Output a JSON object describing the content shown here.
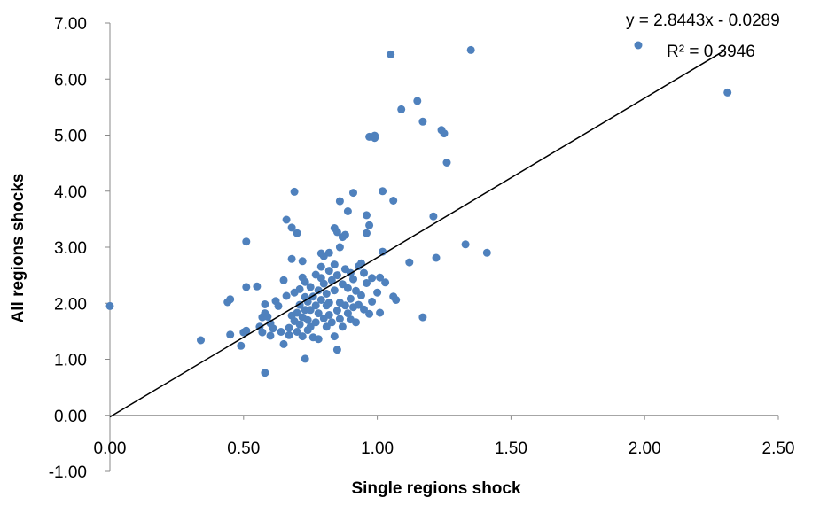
{
  "chart_data": {
    "type": "scatter",
    "xlabel": "Single regions shock",
    "ylabel": "All regions shocks",
    "xlim": [
      0,
      2.5
    ],
    "ylim": [
      -1,
      7
    ],
    "x_ticks": [
      "0.00",
      "0.50",
      "1.00",
      "1.50",
      "2.00",
      "2.50"
    ],
    "y_ticks": [
      "-1.00",
      "0.00",
      "1.00",
      "2.00",
      "3.00",
      "4.00",
      "5.00",
      "6.00",
      "7.00"
    ],
    "grid": false,
    "legend_position": "top-right",
    "point_color": "#4f81bd",
    "trendline": {
      "slope": 2.8443,
      "intercept": -0.0289,
      "x_range": [
        0,
        2.3
      ],
      "color": "#000000",
      "equation_label": "y = 2.8443x - 0.0289",
      "r2_label": "R² = 0.3946"
    },
    "points": [
      [
        0.0,
        1.95
      ],
      [
        0.34,
        1.34
      ],
      [
        0.44,
        2.02
      ],
      [
        0.45,
        2.07
      ],
      [
        0.45,
        1.44
      ],
      [
        0.49,
        1.24
      ],
      [
        0.5,
        1.48
      ],
      [
        0.51,
        1.51
      ],
      [
        0.51,
        3.1
      ],
      [
        0.51,
        2.29
      ],
      [
        0.55,
        2.3
      ],
      [
        0.56,
        1.58
      ],
      [
        0.57,
        1.75
      ],
      [
        0.57,
        1.48
      ],
      [
        0.58,
        0.76
      ],
      [
        0.58,
        1.98
      ],
      [
        0.58,
        1.82
      ],
      [
        0.59,
        1.76
      ],
      [
        0.6,
        1.42
      ],
      [
        0.6,
        1.64
      ],
      [
        0.61,
        1.55
      ],
      [
        0.62,
        2.04
      ],
      [
        0.63,
        1.95
      ],
      [
        0.64,
        1.49
      ],
      [
        0.65,
        2.41
      ],
      [
        0.65,
        1.27
      ],
      [
        0.66,
        2.13
      ],
      [
        0.66,
        3.49
      ],
      [
        0.67,
        1.56
      ],
      [
        0.67,
        1.43
      ],
      [
        0.68,
        3.35
      ],
      [
        0.68,
        1.78
      ],
      [
        0.68,
        2.79
      ],
      [
        0.69,
        1.68
      ],
      [
        0.69,
        2.19
      ],
      [
        0.69,
        3.99
      ],
      [
        0.7,
        3.25
      ],
      [
        0.7,
        1.49
      ],
      [
        0.7,
        1.83
      ],
      [
        0.71,
        2.25
      ],
      [
        0.71,
        1.97
      ],
      [
        0.71,
        1.62
      ],
      [
        0.72,
        2.75
      ],
      [
        0.72,
        2.46
      ],
      [
        0.72,
        1.75
      ],
      [
        0.72,
        1.41
      ],
      [
        0.73,
        2.38
      ],
      [
        0.73,
        1.01
      ],
      [
        0.73,
        1.88
      ],
      [
        0.73,
        2.11
      ],
      [
        0.74,
        1.52
      ],
      [
        0.74,
        2.03
      ],
      [
        0.74,
        1.7
      ],
      [
        0.75,
        2.29
      ],
      [
        0.75,
        1.88
      ],
      [
        0.75,
        1.58
      ],
      [
        0.76,
        2.12
      ],
      [
        0.76,
        1.39
      ],
      [
        0.77,
        2.51
      ],
      [
        0.77,
        1.96
      ],
      [
        0.77,
        1.66
      ],
      [
        0.78,
        2.23
      ],
      [
        0.78,
        1.82
      ],
      [
        0.78,
        1.36
      ],
      [
        0.79,
        2.89
      ],
      [
        0.79,
        2.45
      ],
      [
        0.79,
        2.06
      ],
      [
        0.79,
        2.65
      ],
      [
        0.8,
        1.73
      ],
      [
        0.8,
        2.84
      ],
      [
        0.8,
        2.35
      ],
      [
        0.81,
        1.96
      ],
      [
        0.81,
        1.58
      ],
      [
        0.81,
        2.17
      ],
      [
        0.82,
        2.9
      ],
      [
        0.82,
        2.58
      ],
      [
        0.82,
        2.01
      ],
      [
        0.82,
        1.79
      ],
      [
        0.83,
        2.41
      ],
      [
        0.83,
        1.66
      ],
      [
        0.84,
        2.69
      ],
      [
        0.84,
        3.34
      ],
      [
        0.84,
        2.23
      ],
      [
        0.84,
        1.41
      ],
      [
        0.85,
        3.27
      ],
      [
        0.85,
        1.17
      ],
      [
        0.85,
        1.87
      ],
      [
        0.85,
        2.5
      ],
      [
        0.86,
        3.82
      ],
      [
        0.86,
        2.01
      ],
      [
        0.86,
        1.72
      ],
      [
        0.86,
        3.0
      ],
      [
        0.87,
        3.18
      ],
      [
        0.87,
        2.34
      ],
      [
        0.87,
        1.58
      ],
      [
        0.88,
        2.61
      ],
      [
        0.88,
        1.96
      ],
      [
        0.88,
        3.22
      ],
      [
        0.89,
        3.64
      ],
      [
        0.89,
        1.82
      ],
      [
        0.89,
        2.27
      ],
      [
        0.9,
        2.54
      ],
      [
        0.9,
        1.71
      ],
      [
        0.9,
        2.08
      ],
      [
        0.91,
        2.43
      ],
      [
        0.91,
        3.97
      ],
      [
        0.91,
        1.93
      ],
      [
        0.92,
        2.22
      ],
      [
        0.92,
        1.66
      ],
      [
        0.93,
        2.66
      ],
      [
        0.93,
        1.97
      ],
      [
        0.94,
        2.71
      ],
      [
        0.94,
        2.14
      ],
      [
        0.95,
        2.54
      ],
      [
        0.95,
        1.89
      ],
      [
        0.96,
        3.57
      ],
      [
        0.96,
        3.25
      ],
      [
        0.96,
        2.36
      ],
      [
        0.97,
        4.97
      ],
      [
        0.97,
        3.39
      ],
      [
        0.97,
        1.81
      ],
      [
        0.98,
        2.45
      ],
      [
        0.98,
        2.03
      ],
      [
        0.99,
        4.95
      ],
      [
        0.99,
        4.99
      ],
      [
        1.0,
        2.19
      ],
      [
        1.01,
        2.46
      ],
      [
        1.01,
        1.83
      ],
      [
        1.02,
        4.0
      ],
      [
        1.02,
        2.92
      ],
      [
        1.03,
        2.37
      ],
      [
        1.05,
        6.44
      ],
      [
        1.06,
        3.83
      ],
      [
        1.06,
        2.12
      ],
      [
        1.07,
        2.06
      ],
      [
        1.09,
        5.46
      ],
      [
        1.12,
        2.73
      ],
      [
        1.15,
        5.61
      ],
      [
        1.17,
        5.24
      ],
      [
        1.17,
        1.75
      ],
      [
        1.21,
        3.55
      ],
      [
        1.22,
        2.81
      ],
      [
        1.24,
        5.09
      ],
      [
        1.25,
        5.03
      ],
      [
        1.26,
        4.51
      ],
      [
        1.33,
        3.05
      ],
      [
        1.35,
        6.52
      ],
      [
        1.41,
        2.9
      ],
      [
        2.31,
        5.76
      ]
    ]
  }
}
